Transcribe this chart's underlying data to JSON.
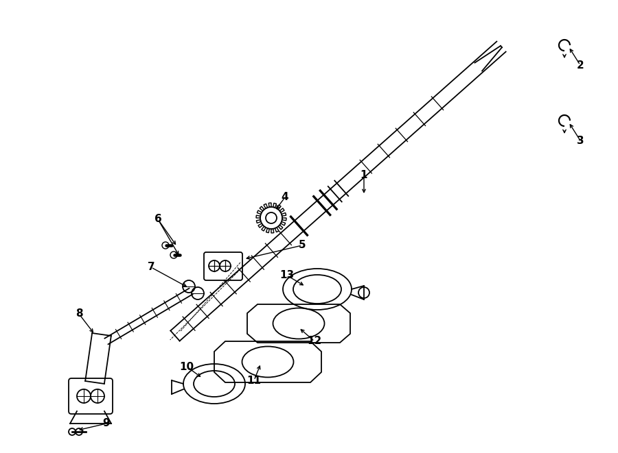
{
  "background_color": "#ffffff",
  "line_color": "#000000",
  "fig_width": 9.0,
  "fig_height": 6.61,
  "dpi": 100,
  "lw": 1.3,
  "label_fontsize": 11
}
